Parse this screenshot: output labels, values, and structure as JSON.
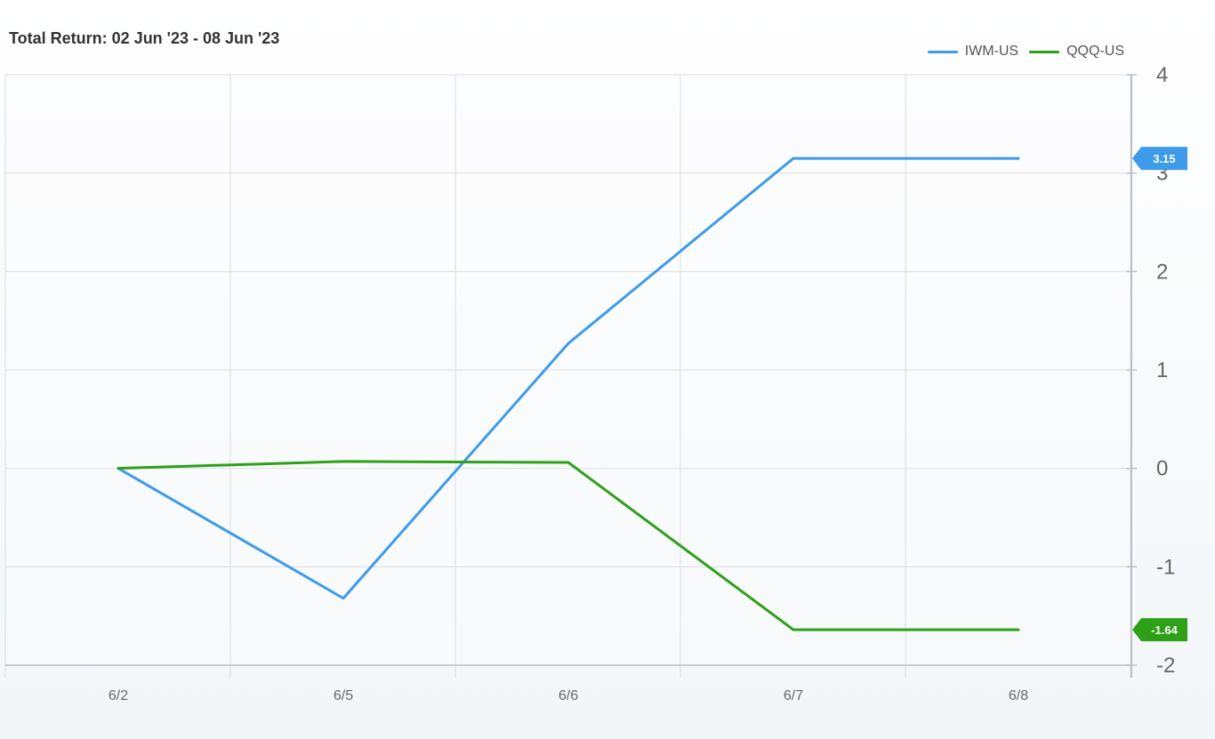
{
  "title": "Total Return: 02 Jun '23 - 08 Jun '23",
  "colors": {
    "IWM-US": "#3d9be9",
    "QQQ-US": "#2ea018",
    "grid": "#d9dee3",
    "axis": "#b9c0c7"
  },
  "chart_data": {
    "type": "line",
    "title": "Total Return: 02 Jun '23 - 08 Jun '23",
    "xlabel": "",
    "ylabel": "",
    "categories": [
      "6/2",
      "6/5",
      "6/6",
      "6/7",
      "6/8"
    ],
    "series": [
      {
        "name": "IWM-US",
        "color": "#3d9be9",
        "values": [
          0.0,
          -1.32,
          1.27,
          3.15,
          3.15
        ],
        "end_label": "3.15"
      },
      {
        "name": "QQQ-US",
        "color": "#2ea018",
        "values": [
          0.0,
          0.07,
          0.06,
          -1.64,
          -1.64
        ],
        "end_label": "-1.64"
      }
    ],
    "ylim": [
      -2,
      4
    ],
    "yticks": [
      {
        "value": 4,
        "label": "4"
      },
      {
        "value": 3,
        "label": "3"
      },
      {
        "value": 2,
        "label": "2"
      },
      {
        "value": 1,
        "label": "1"
      },
      {
        "value": 0,
        "label": "0"
      },
      {
        "value": -1,
        "label": "-1"
      },
      {
        "value": -2,
        "label": "-2"
      }
    ],
    "yaxis_position": "right",
    "grid": true,
    "legend": "top-right"
  }
}
